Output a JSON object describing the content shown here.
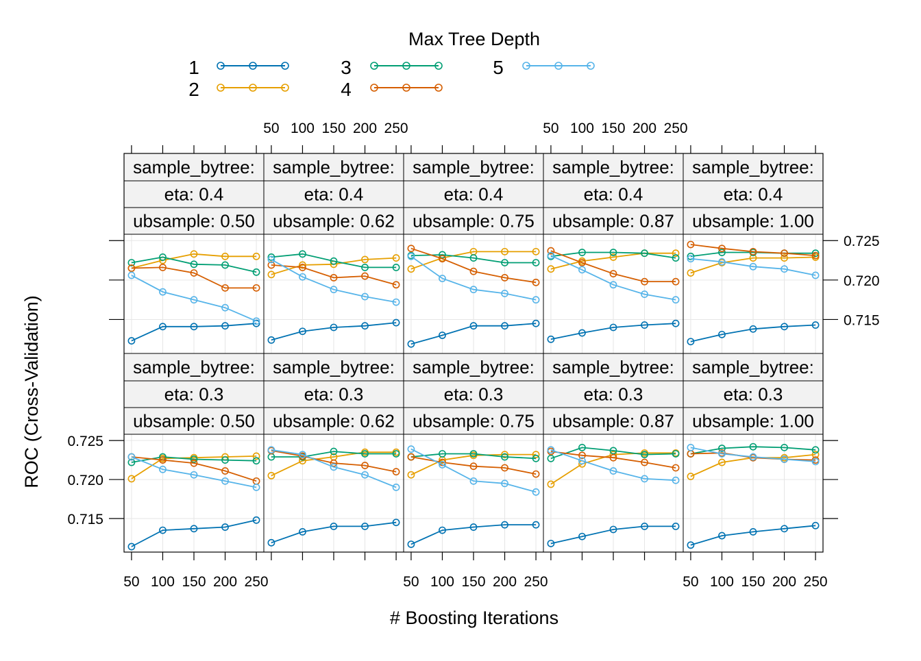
{
  "chart_data": {
    "type": "line",
    "legend": {
      "title": "Max Tree Depth",
      "placement": "top",
      "entries": [
        "1",
        "2",
        "3",
        "4",
        "5"
      ]
    },
    "colors": {
      "1": "#0072B2",
      "2": "#E69F00",
      "3": "#009E73",
      "4": "#D55E00",
      "5": "#56B4E9",
      "panel_border": "#000000",
      "strip_bg": "#f2f2f2",
      "grid": "#e6e6e6"
    },
    "xlabel": "# Boosting Iterations",
    "ylabel": "ROC (Cross-Validation)",
    "x": [
      50,
      100,
      150,
      200,
      250
    ],
    "x_ticks": [
      "50",
      "100",
      "150",
      "200",
      "250"
    ],
    "xlim": [
      38,
      262
    ],
    "y_ticks": [
      "0.715",
      "0.720",
      "0.725"
    ],
    "ylim": [
      0.7107,
      0.7258
    ],
    "grid": true,
    "strip_text": {
      "colsample": "sample_bytree:",
      "subsample": [
        "ubsample: 0.50",
        "ubsample: 0.62",
        "ubsample: 0.75",
        "ubsample: 0.87",
        "ubsample: 1.00"
      ]
    },
    "rows": [
      {
        "eta_label": "eta: 0.4",
        "panels": [
          {
            "series": [
              {
                "depth": "1",
                "values": [
                  0.7123,
                  0.7141,
                  0.7141,
                  0.7142,
                  0.7145
                ]
              },
              {
                "depth": "2",
                "values": [
                  0.7215,
                  0.7225,
                  0.7233,
                  0.723,
                  0.723
                ]
              },
              {
                "depth": "3",
                "values": [
                  0.7222,
                  0.7229,
                  0.722,
                  0.7219,
                  0.721
                ]
              },
              {
                "depth": "4",
                "values": [
                  0.7215,
                  0.7216,
                  0.7209,
                  0.719,
                  0.719
                ]
              },
              {
                "depth": "5",
                "values": [
                  0.7206,
                  0.7185,
                  0.7175,
                  0.7165,
                  0.7148
                ]
              }
            ]
          },
          {
            "series": [
              {
                "depth": "1",
                "values": [
                  0.7124,
                  0.7135,
                  0.714,
                  0.7142,
                  0.7146
                ]
              },
              {
                "depth": "2",
                "values": [
                  0.7207,
                  0.7219,
                  0.722,
                  0.7226,
                  0.7228
                ]
              },
              {
                "depth": "3",
                "values": [
                  0.7229,
                  0.7233,
                  0.7224,
                  0.7216,
                  0.7216
                ]
              },
              {
                "depth": "4",
                "values": [
                  0.7219,
                  0.7216,
                  0.7203,
                  0.7205,
                  0.7194
                ]
              },
              {
                "depth": "5",
                "values": [
                  0.7226,
                  0.7204,
                  0.7188,
                  0.7179,
                  0.7172
                ]
              }
            ]
          },
          {
            "series": [
              {
                "depth": "1",
                "values": [
                  0.7119,
                  0.713,
                  0.7142,
                  0.7142,
                  0.7145
                ]
              },
              {
                "depth": "2",
                "values": [
                  0.7214,
                  0.7228,
                  0.7236,
                  0.7236,
                  0.7236
                ]
              },
              {
                "depth": "3",
                "values": [
                  0.7231,
                  0.7232,
                  0.7228,
                  0.7222,
                  0.7222
                ]
              },
              {
                "depth": "4",
                "values": [
                  0.724,
                  0.7227,
                  0.7211,
                  0.7203,
                  0.7197
                ]
              },
              {
                "depth": "5",
                "values": [
                  0.723,
                  0.7202,
                  0.7188,
                  0.7183,
                  0.7175
                ]
              }
            ]
          },
          {
            "series": [
              {
                "depth": "1",
                "values": [
                  0.7125,
                  0.7133,
                  0.714,
                  0.7143,
                  0.7145
                ]
              },
              {
                "depth": "2",
                "values": [
                  0.7214,
                  0.7224,
                  0.7229,
                  0.7234,
                  0.7234
                ]
              },
              {
                "depth": "3",
                "values": [
                  0.723,
                  0.7235,
                  0.7235,
                  0.7234,
                  0.7228
                ]
              },
              {
                "depth": "4",
                "values": [
                  0.7237,
                  0.7222,
                  0.7208,
                  0.7198,
                  0.7198
                ]
              },
              {
                "depth": "5",
                "values": [
                  0.7231,
                  0.7213,
                  0.7194,
                  0.7182,
                  0.7175
                ]
              }
            ]
          },
          {
            "series": [
              {
                "depth": "1",
                "values": [
                  0.7122,
                  0.7131,
                  0.7138,
                  0.7141,
                  0.7143
                ]
              },
              {
                "depth": "2",
                "values": [
                  0.7209,
                  0.7222,
                  0.7228,
                  0.7228,
                  0.7229
                ]
              },
              {
                "depth": "3",
                "values": [
                  0.723,
                  0.7235,
                  0.7235,
                  0.7234,
                  0.7234
                ]
              },
              {
                "depth": "4",
                "values": [
                  0.7245,
                  0.724,
                  0.7236,
                  0.7234,
                  0.7231
                ]
              },
              {
                "depth": "5",
                "values": [
                  0.7227,
                  0.7223,
                  0.7217,
                  0.7214,
                  0.7206
                ]
              }
            ]
          }
        ]
      },
      {
        "eta_label": "eta: 0.3",
        "panels": [
          {
            "series": [
              {
                "depth": "1",
                "values": [
                  0.7114,
                  0.7135,
                  0.7137,
                  0.7139,
                  0.7148
                ]
              },
              {
                "depth": "2",
                "values": [
                  0.7201,
                  0.7227,
                  0.7228,
                  0.7229,
                  0.723
                ]
              },
              {
                "depth": "3",
                "values": [
                  0.7222,
                  0.7229,
                  0.7226,
                  0.7225,
                  0.7224
                ]
              },
              {
                "depth": "4",
                "values": [
                  0.7229,
                  0.7225,
                  0.7221,
                  0.7211,
                  0.7198
                ]
              },
              {
                "depth": "5",
                "values": [
                  0.7229,
                  0.7213,
                  0.7206,
                  0.7198,
                  0.719
                ]
              }
            ]
          },
          {
            "series": [
              {
                "depth": "1",
                "values": [
                  0.7119,
                  0.7133,
                  0.714,
                  0.714,
                  0.7145
                ]
              },
              {
                "depth": "2",
                "values": [
                  0.7205,
                  0.7224,
                  0.7229,
                  0.7235,
                  0.7235
                ]
              },
              {
                "depth": "3",
                "values": [
                  0.7229,
                  0.7229,
                  0.7236,
                  0.7233,
                  0.7233
                ]
              },
              {
                "depth": "4",
                "values": [
                  0.7237,
                  0.723,
                  0.7221,
                  0.7218,
                  0.721
                ]
              },
              {
                "depth": "5",
                "values": [
                  0.7238,
                  0.7232,
                  0.7216,
                  0.7206,
                  0.719
                ]
              }
            ]
          },
          {
            "series": [
              {
                "depth": "1",
                "values": [
                  0.7117,
                  0.7135,
                  0.7139,
                  0.7142,
                  0.7142
                ]
              },
              {
                "depth": "2",
                "values": [
                  0.7206,
                  0.7225,
                  0.7231,
                  0.7232,
                  0.7232
                ]
              },
              {
                "depth": "3",
                "values": [
                  0.7229,
                  0.7233,
                  0.7233,
                  0.7229,
                  0.7227
                ]
              },
              {
                "depth": "4",
                "values": [
                  0.7229,
                  0.7222,
                  0.7217,
                  0.7215,
                  0.7207
                ]
              },
              {
                "depth": "5",
                "values": [
                  0.7239,
                  0.7219,
                  0.7198,
                  0.7195,
                  0.7184
                ]
              }
            ]
          },
          {
            "series": [
              {
                "depth": "1",
                "values": [
                  0.7118,
                  0.7127,
                  0.7136,
                  0.714,
                  0.714
                ]
              },
              {
                "depth": "2",
                "values": [
                  0.7194,
                  0.722,
                  0.7232,
                  0.7234,
                  0.7234
                ]
              },
              {
                "depth": "3",
                "values": [
                  0.7227,
                  0.7241,
                  0.7237,
                  0.7232,
                  0.7233
                ]
              },
              {
                "depth": "4",
                "values": [
                  0.7236,
                  0.7231,
                  0.7228,
                  0.7222,
                  0.7215
                ]
              },
              {
                "depth": "5",
                "values": [
                  0.7238,
                  0.7224,
                  0.7211,
                  0.7201,
                  0.7199
                ]
              }
            ]
          },
          {
            "series": [
              {
                "depth": "1",
                "values": [
                  0.7116,
                  0.7128,
                  0.7133,
                  0.7137,
                  0.7141
                ]
              },
              {
                "depth": "2",
                "values": [
                  0.7204,
                  0.7222,
                  0.7228,
                  0.7228,
                  0.7232
                ]
              },
              {
                "depth": "3",
                "values": [
                  0.7233,
                  0.724,
                  0.7242,
                  0.7241,
                  0.7238
                ]
              },
              {
                "depth": "4",
                "values": [
                  0.7233,
                  0.7234,
                  0.7228,
                  0.7226,
                  0.7225
                ]
              },
              {
                "depth": "5",
                "values": [
                  0.7241,
                  0.7233,
                  0.7229,
                  0.7226,
                  0.7223
                ]
              }
            ]
          }
        ]
      }
    ]
  }
}
